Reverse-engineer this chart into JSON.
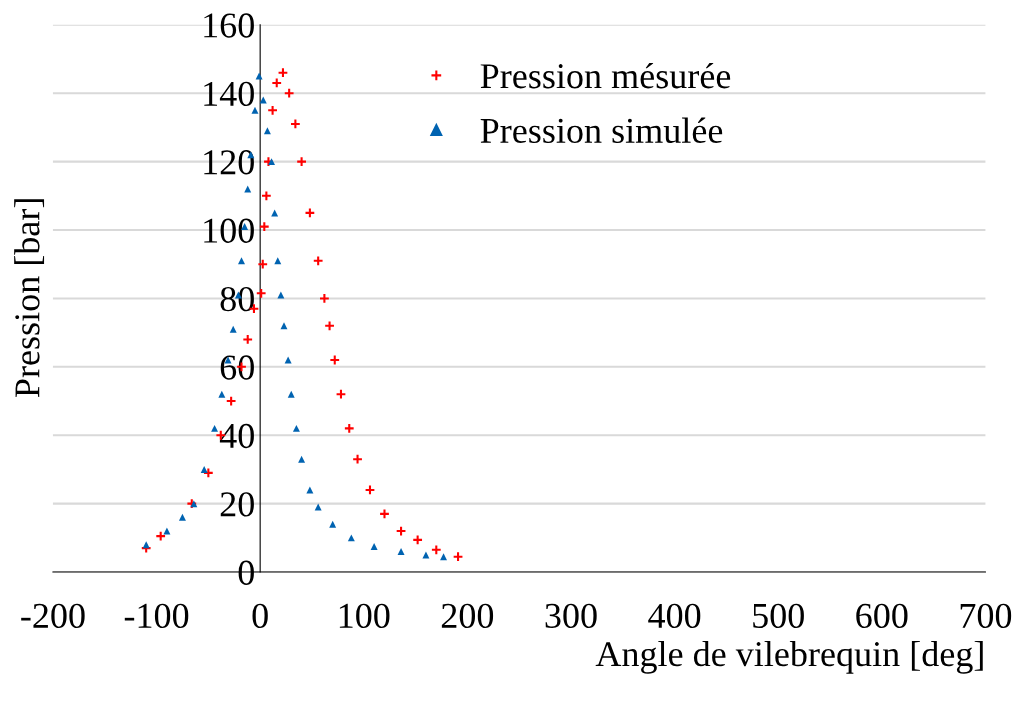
{
  "chart_data": {
    "type": "scatter",
    "xlabel": "Angle de vilebrequin [deg]",
    "ylabel": "Pression [bar]",
    "xlim": [
      -200,
      700
    ],
    "xticks": [
      -200,
      -100,
      0,
      100,
      200,
      300,
      400,
      500,
      600,
      700
    ],
    "ylim": [
      0,
      160
    ],
    "yticks": [
      0,
      20,
      40,
      60,
      80,
      100,
      120,
      140,
      160
    ],
    "grid": "y",
    "legend": "top",
    "series": [
      {
        "name": "Pression mésurée",
        "color": "#ff0000",
        "marker": "cross",
        "x": [
          -110,
          -96,
          -66,
          -50,
          -38,
          -28,
          -18,
          -12,
          -6,
          1,
          2.5,
          4,
          6,
          8,
          12,
          16,
          22,
          28,
          34,
          40,
          48,
          56,
          62,
          67,
          72,
          78,
          86,
          94,
          106,
          120,
          136,
          152,
          170,
          191
        ],
        "values": [
          7,
          10.5,
          20,
          29,
          40,
          50,
          60,
          68,
          77,
          81.5,
          90,
          101,
          110,
          120,
          135,
          143,
          146,
          140,
          131,
          120,
          105,
          91,
          80,
          72,
          62,
          52,
          42,
          33,
          24,
          17,
          12,
          9.4,
          6.5,
          4.5
        ]
      },
      {
        "name": "Pression simulée",
        "color": "#0063b1",
        "marker": "triangle",
        "x": [
          -110,
          -90,
          -75,
          -64,
          -54,
          -44,
          -37,
          -31,
          -26,
          -21,
          -18,
          -15,
          -12,
          -9,
          -5,
          -1,
          3,
          7,
          11,
          14,
          17,
          20,
          23,
          27,
          30,
          35,
          40,
          48,
          56,
          70,
          88,
          110,
          136,
          160,
          177
        ],
        "values": [
          8,
          12,
          16,
          20,
          30,
          42,
          52,
          62,
          71,
          81,
          91,
          101,
          112,
          122,
          135,
          145,
          138,
          129,
          120,
          105,
          91,
          81,
          72,
          62,
          52,
          42,
          33,
          24,
          19,
          14,
          10,
          7.5,
          6,
          5,
          4.5
        ]
      }
    ]
  }
}
